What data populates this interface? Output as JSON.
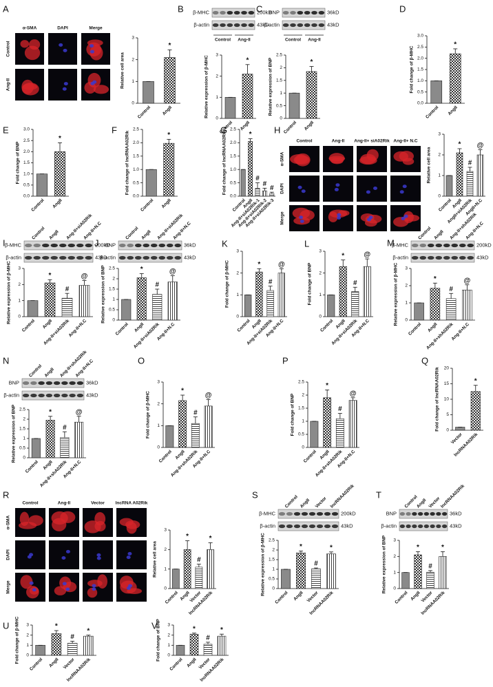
{
  "chart_data": [
    {
      "type": "bar",
      "ylabel": "Relative cell area",
      "categories": [
        "Control",
        "AngII"
      ],
      "values": [
        1.0,
        2.1
      ],
      "errors": [
        0,
        0.35
      ],
      "annotations": [
        null,
        "*"
      ],
      "ylim": [
        0,
        3
      ],
      "yticks": [
        0,
        1,
        2,
        3
      ]
    },
    {
      "type": "bar",
      "ylabel": "Relative expression of β-MHC",
      "categories": [
        "Control",
        "AngII"
      ],
      "values": [
        1.0,
        2.1
      ],
      "errors": [
        0,
        0.45
      ],
      "annotations": [
        null,
        "*"
      ],
      "ylim": [
        0,
        3
      ],
      "yticks": [
        0,
        1,
        2,
        3
      ]
    },
    {
      "type": "bar",
      "ylabel": "Relative expression of BNP",
      "categories": [
        "Control",
        "AngII"
      ],
      "values": [
        1.0,
        1.85
      ],
      "errors": [
        0,
        0.2
      ],
      "annotations": [
        null,
        "*"
      ],
      "ylim": [
        0,
        2.5
      ],
      "yticks": [
        0,
        0.5,
        1,
        1.5,
        2,
        2.5
      ]
    },
    {
      "type": "bar",
      "panel": "D",
      "ylabel": "Fold change of β-MHC",
      "categories": [
        "Control",
        "AngII"
      ],
      "values": [
        1.0,
        2.2
      ],
      "errors": [
        0,
        0.22
      ],
      "annotations": [
        null,
        "*"
      ],
      "ylim": [
        0,
        3
      ],
      "yticks": [
        {
          "value": 0,
          "label": "0.0"
        },
        0.5,
        {
          "value": 1,
          "label": "1.0"
        },
        1.5,
        {
          "value": 2,
          "label": "2.0"
        },
        2.5,
        {
          "value": 3,
          "label": "3.0"
        }
      ]
    },
    {
      "type": "bar",
      "panel": "E",
      "ylabel": "Fold change of BNP",
      "categories": [
        "Control",
        "AngII"
      ],
      "values": [
        1.0,
        2.0
      ],
      "errors": [
        0,
        0.4
      ],
      "annotations": [
        null,
        "*"
      ],
      "ylim": [
        0,
        3
      ],
      "yticks": [
        {
          "value": 0,
          "label": "0.0"
        },
        0.5,
        {
          "value": 1,
          "label": "1.0"
        },
        1.5,
        {
          "value": 2,
          "label": "2.0"
        },
        2.5,
        {
          "value": 3,
          "label": "3.0"
        }
      ]
    },
    {
      "type": "bar",
      "panel": "F",
      "ylabel": "Fold change of lncRNAA02Rik",
      "categories": [
        "Control",
        "AngII"
      ],
      "values": [
        1.0,
        1.98
      ],
      "errors": [
        0,
        0.15
      ],
      "annotations": [
        null,
        "*"
      ],
      "ylim": [
        0,
        2.5
      ],
      "yticks": [
        {
          "value": 0,
          "label": "0.0"
        },
        0.5,
        {
          "value": 1,
          "label": "1.0"
        },
        1.5,
        {
          "value": 2,
          "label": "2.0"
        },
        2.5
      ]
    },
    {
      "type": "bar",
      "panel": "G",
      "ylabel": "Fold change of lncRNAA02Rik",
      "categories": [
        "Control",
        "AngII",
        "Ang-II+siA02Rik-1",
        "Ang-II+siA02Rik-2",
        "Ang-II+siA02Rik-3"
      ],
      "values": [
        1.0,
        2.05,
        0.3,
        0.2,
        0.1
      ],
      "errors": [
        0,
        0.1,
        0.2,
        0.1,
        0.05
      ],
      "annotations": [
        null,
        "*",
        "#",
        "#",
        "#"
      ],
      "ylim": [
        0,
        2.5
      ],
      "yticks": [
        {
          "value": 0,
          "label": "0.0"
        },
        0.5,
        {
          "value": 1,
          "label": "1.0"
        },
        1.5,
        {
          "value": 2,
          "label": "2.0"
        },
        2.5
      ]
    },
    {
      "type": "bar",
      "ylabel": "Relative cell area",
      "categories": [
        "Control",
        "AngII",
        "AngII+siA02Rik",
        "AngII+N.C"
      ],
      "values": [
        1.0,
        2.1,
        1.2,
        2.0
      ],
      "errors": [
        0,
        0.2,
        0.2,
        0.25
      ],
      "annotations": [
        null,
        "*",
        "#",
        "@"
      ],
      "ylim": [
        0,
        3
      ],
      "yticks": [
        0,
        1,
        2,
        3
      ]
    },
    {
      "type": "bar",
      "ylabel": "Relative expression of β-MHC",
      "categories": [
        "Control",
        "AngII",
        "Ang-II+siA02Rik",
        "Ang-II+N.C"
      ],
      "values": [
        1.0,
        2.1,
        1.15,
        1.95
      ],
      "errors": [
        0,
        0.2,
        0.3,
        0.3
      ],
      "annotations": [
        null,
        "*",
        "#",
        "@"
      ],
      "ylim": [
        0,
        3
      ],
      "yticks": [
        0,
        1,
        2,
        3
      ]
    },
    {
      "type": "bar",
      "ylabel": "Relative expression of BNP",
      "categories": [
        "Control",
        "AngII",
        "Ang-II+siA02Rik",
        "Ang-II+N.C"
      ],
      "values": [
        1.0,
        2.05,
        1.25,
        1.85
      ],
      "errors": [
        0,
        0.2,
        0.25,
        0.3
      ],
      "annotations": [
        null,
        "*",
        "#",
        "@"
      ],
      "ylim": [
        0,
        2.5
      ],
      "yticks": [
        0,
        0.5,
        1,
        1.5,
        2,
        2.5
      ]
    },
    {
      "type": "bar",
      "panel": "K",
      "ylabel": "Fold change of β-MHC",
      "categories": [
        "Control",
        "AngII",
        "Ang-II+siA02Rik",
        "Ang-II+N.C"
      ],
      "values": [
        1.0,
        2.05,
        1.2,
        2.0
      ],
      "errors": [
        0,
        0.15,
        0.2,
        0.2
      ],
      "annotations": [
        null,
        "*",
        "#",
        "@"
      ],
      "ylim": [
        0,
        3
      ],
      "yticks": [
        0,
        1,
        2,
        3
      ]
    },
    {
      "type": "bar",
      "panel": "L",
      "ylabel": "Fold change of BNP",
      "categories": [
        "Control",
        "AngII",
        "Ang-II+siA02Rik",
        "Ang-II+N.C"
      ],
      "values": [
        1.0,
        2.3,
        1.15,
        2.3
      ],
      "errors": [
        0,
        0.3,
        0.2,
        0.35
      ],
      "annotations": [
        null,
        "*",
        "#",
        "@"
      ],
      "ylim": [
        0,
        3
      ],
      "yticks": [
        0,
        1,
        2,
        3
      ]
    },
    {
      "type": "bar",
      "ylabel": "Relative expression of β-MHC",
      "categories": [
        "Control",
        "AngII",
        "Ang-II+shA02Rik",
        "Ang-II+N.C"
      ],
      "values": [
        1.0,
        1.85,
        1.25,
        1.75
      ],
      "errors": [
        0,
        0.3,
        0.3,
        0.3
      ],
      "annotations": [
        null,
        "*",
        "#",
        "@"
      ],
      "ylim": [
        0,
        3
      ],
      "yticks": [
        0,
        1,
        2,
        3
      ]
    },
    {
      "type": "bar",
      "ylabel": "Relative expression of BNP",
      "categories": [
        "Control",
        "AngII",
        "Ang-II+shA02Rik",
        "Ang-II+N.C"
      ],
      "values": [
        1.0,
        1.95,
        1.05,
        1.85
      ],
      "errors": [
        0,
        0.2,
        0.3,
        0.3
      ],
      "annotations": [
        null,
        "*",
        "#",
        "@"
      ],
      "ylim": [
        0,
        2.5
      ],
      "yticks": [
        0,
        0.5,
        1,
        1.5,
        2,
        2.5
      ]
    },
    {
      "type": "bar",
      "panel": "O",
      "ylabel": "Fold change of β-MHC",
      "categories": [
        "Control",
        "AngII",
        "Ang-II+shA02Rik",
        "Ang-II+N.C"
      ],
      "values": [
        1.0,
        2.15,
        1.1,
        1.9
      ],
      "errors": [
        0,
        0.25,
        0.3,
        0.3
      ],
      "annotations": [
        null,
        "*",
        "#",
        "@"
      ],
      "ylim": [
        0,
        3
      ],
      "yticks": [
        0,
        1,
        2,
        3
      ]
    },
    {
      "type": "bar",
      "panel": "P",
      "ylabel": "Fold change of BNP",
      "categories": [
        "Control",
        "AngII",
        "Ang-II+shA02Rik",
        "Ang-II+N.C"
      ],
      "values": [
        1.0,
        1.9,
        1.1,
        1.8
      ],
      "errors": [
        0,
        0.3,
        0.2,
        0.1
      ],
      "annotations": [
        null,
        "*",
        "#",
        "@"
      ],
      "ylim": [
        0,
        2.5
      ],
      "yticks": [
        0,
        0.5,
        1,
        1.5,
        2,
        2.5
      ]
    },
    {
      "type": "bar",
      "panel": "Q",
      "ylabel": "Fold change of lncRNAA02Rik",
      "categories": [
        "Vector",
        "lncRNAA02Rik"
      ],
      "values": [
        1.0,
        12.5
      ],
      "errors": [
        0,
        2.0
      ],
      "annotations": [
        null,
        "*"
      ],
      "ylim": [
        0,
        20
      ],
      "yticks": [
        0,
        5,
        10,
        15,
        20
      ]
    },
    {
      "type": "bar",
      "ylabel": "Relative cell area",
      "categories": [
        "Control",
        "AngII",
        "Vector",
        "lncRNAA02Rik"
      ],
      "values": [
        1.0,
        2.0,
        1.1,
        2.0
      ],
      "errors": [
        0,
        0.45,
        0.15,
        0.35
      ],
      "annotations": [
        null,
        "*",
        "#",
        "*"
      ],
      "ylim": [
        0,
        3
      ],
      "yticks": [
        0,
        1,
        2,
        3
      ]
    },
    {
      "type": "bar",
      "ylabel": "Relative expression of β-MHC",
      "categories": [
        "Control",
        "AngII",
        "Vector",
        "lncRNAA02Rik"
      ],
      "values": [
        1.0,
        1.85,
        1.02,
        1.8
      ],
      "errors": [
        0,
        0.1,
        0.05,
        0.1
      ],
      "annotations": [
        null,
        "*",
        "#",
        "*"
      ],
      "ylim": [
        0,
        2.5
      ],
      "yticks": [
        0,
        0.5,
        1,
        1.5,
        2,
        2.5
      ]
    },
    {
      "type": "bar",
      "ylabel": "Relative expression of BNP",
      "categories": [
        "Control",
        "AngII",
        "Vector",
        "lncRNAA02Rik"
      ],
      "values": [
        1.0,
        2.1,
        1.02,
        2.0
      ],
      "errors": [
        0,
        0.2,
        0.1,
        0.3
      ],
      "annotations": [
        null,
        "*",
        "#",
        "*"
      ],
      "ylim": [
        0,
        3
      ],
      "yticks": [
        0,
        1,
        2,
        3
      ]
    },
    {
      "type": "bar",
      "panel": "U",
      "ylabel": "Fold change of β-MHC",
      "categories": [
        "Control",
        "AngII",
        "Vector",
        "lncRNAA02Rik"
      ],
      "values": [
        1.0,
        2.15,
        1.2,
        1.9
      ],
      "errors": [
        0,
        0.3,
        0.2,
        0.1
      ],
      "annotations": [
        null,
        "*",
        "#",
        "*"
      ],
      "ylim": [
        0,
        3
      ],
      "yticks": [
        0,
        1,
        2,
        3
      ]
    },
    {
      "type": "bar",
      "panel": "V",
      "ylabel": "Fold change of BNP",
      "categories": [
        "Control",
        "AngII",
        "Vector",
        "lncRNAA02Rik"
      ],
      "values": [
        1.0,
        2.1,
        1.1,
        1.9
      ],
      "errors": [
        0,
        0.1,
        0.2,
        0.2
      ],
      "annotations": [
        null,
        "*",
        "#",
        "*"
      ],
      "ylim": [
        0,
        3
      ],
      "yticks": [
        0,
        1,
        2,
        3
      ]
    }
  ],
  "images": [
    {
      "panel": "A",
      "columns": [
        "α-SMA",
        "DAPI",
        "Merge"
      ],
      "rows": [
        "Control",
        "Ang-II"
      ]
    },
    {
      "panel": "H",
      "columns": [
        "Control",
        "Ang-II",
        "Ang-II+ siA02Rik",
        "Ang-II+ N.C"
      ],
      "rows": [
        "α-SMA",
        "DAPI",
        "Merge"
      ]
    },
    {
      "panel": "R",
      "columns": [
        "Control",
        "Ang-II",
        "Vector",
        "lncRNA A02Rik"
      ],
      "rows": [
        "α-SMA",
        "DAPI",
        "Merge"
      ]
    }
  ],
  "blots": [
    {
      "panel": "B",
      "groups": [
        "Control",
        "Ang-II"
      ],
      "rows": [
        {
          "label": "β-MHC",
          "size": "200kD"
        },
        {
          "label": "β-actin",
          "size": "43kD"
        }
      ]
    },
    {
      "panel": "C",
      "groups": [
        "Control",
        "Ang-II"
      ],
      "rows": [
        {
          "label": "BNP",
          "size": "36kD"
        },
        {
          "label": "β-actin",
          "size": "43kD"
        }
      ]
    },
    {
      "panel": "I",
      "columns": [
        "Control",
        "AngII",
        "Ang-II+siA02Rik",
        "Ang-II+N.C"
      ],
      "rows": [
        {
          "label": "β-MHC",
          "size": "200kD"
        },
        {
          "label": "β-actin",
          "size": "43kD"
        }
      ]
    },
    {
      "panel": "J",
      "columns": [
        "Control",
        "AngII",
        "Ang-II+siA02Rik",
        "Ang-II+N.C"
      ],
      "rows": [
        {
          "label": "BNP",
          "size": "36kD"
        },
        {
          "label": "β-actin",
          "size": "43kD"
        }
      ]
    },
    {
      "panel": "M",
      "columns": [
        "Control",
        "AngII",
        "Ang-II+shA02Rik",
        "Ang-II+N.C"
      ],
      "rows": [
        {
          "label": "β-MHC",
          "size": "200kD"
        },
        {
          "label": "β-actin",
          "size": "43kD"
        }
      ]
    },
    {
      "panel": "N",
      "columns": [
        "Control",
        "AngII",
        "Ang-II+shA02Rik",
        "Ang-II+N.C"
      ],
      "rows": [
        {
          "label": "BNP",
          "size": "36kD"
        },
        {
          "label": "β-actin",
          "size": "43kD"
        }
      ]
    },
    {
      "panel": "S",
      "columns": [
        "Control",
        "AngII",
        "Vector",
        "lncRNAA02Rik"
      ],
      "rows": [
        {
          "label": "β-MHC",
          "size": "200kD"
        },
        {
          "label": "β-actin",
          "size": "43kD"
        }
      ]
    },
    {
      "panel": "T",
      "columns": [
        "Control",
        "AngII",
        "Vector",
        "lncRNAA02Rik"
      ],
      "rows": [
        {
          "label": "BNP",
          "size": "36kD"
        },
        {
          "label": "β-actin",
          "size": "43kD"
        }
      ]
    }
  ]
}
